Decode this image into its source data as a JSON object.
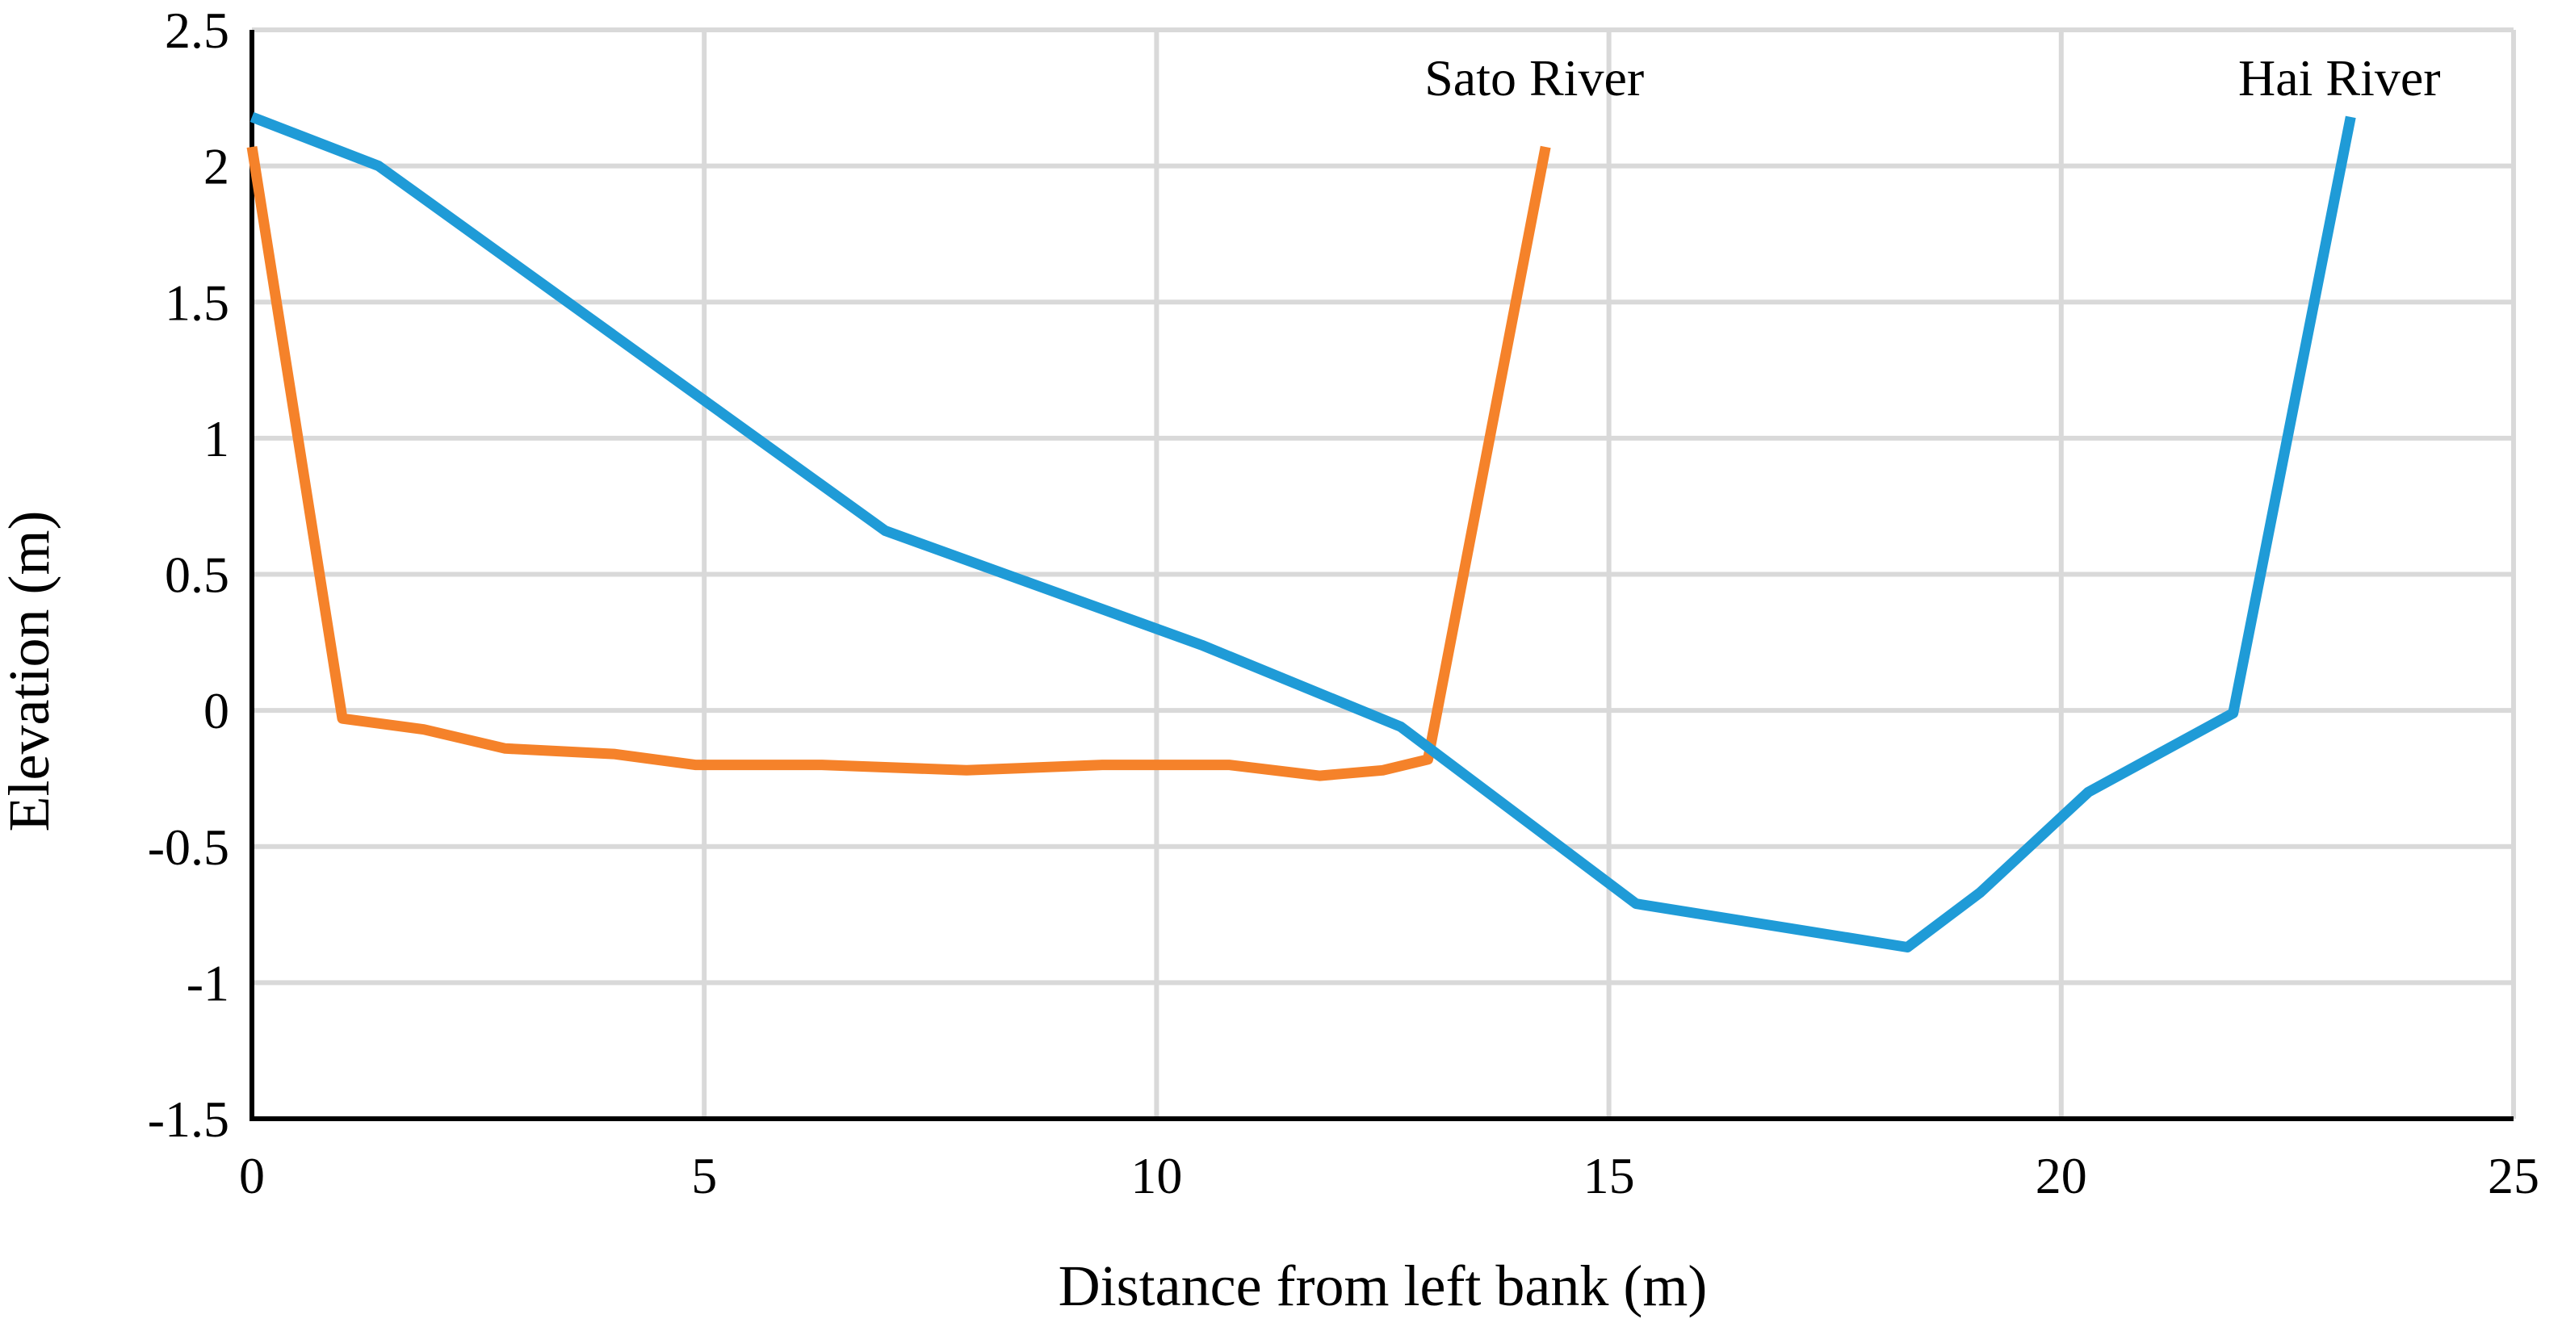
{
  "chart_data": {
    "type": "line",
    "title": "",
    "xlabel": "Distance from left bank (m)",
    "ylabel": "Elevation (m)",
    "xlim": [
      0,
      25
    ],
    "ylim": [
      -1.5,
      2.5
    ],
    "xticks": [
      0,
      5,
      10,
      15,
      20,
      25
    ],
    "yticks": [
      -1.5,
      -1,
      -0.5,
      0,
      0.5,
      1,
      1.5,
      2,
      2.5
    ],
    "xtick_labels": [
      "0",
      "5",
      "10",
      "15",
      "20",
      "25"
    ],
    "ytick_labels": [
      "-1.5",
      "-1",
      "-0.5",
      "0",
      "0.5",
      "1",
      "1.5",
      "2",
      "2.5"
    ],
    "grid": true,
    "legend": "none",
    "series": [
      {
        "name": "Sato River",
        "color": "#F5822A",
        "label_anchor_x": 14.3,
        "points": [
          [
            0.0,
            2.07
          ],
          [
            1.0,
            -0.03
          ],
          [
            1.9,
            -0.07
          ],
          [
            2.8,
            -0.14
          ],
          [
            4.0,
            -0.16
          ],
          [
            4.9,
            -0.2
          ],
          [
            6.3,
            -0.2
          ],
          [
            7.9,
            -0.22
          ],
          [
            9.4,
            -0.2
          ],
          [
            10.8,
            -0.2
          ],
          [
            11.8,
            -0.24
          ],
          [
            12.5,
            -0.22
          ],
          [
            13.0,
            -0.18
          ],
          [
            14.3,
            2.07
          ]
        ]
      },
      {
        "name": "Hai River",
        "color": "#1F9BD7",
        "label_anchor_x": 23.2,
        "points": [
          [
            0.0,
            2.18
          ],
          [
            1.4,
            2.0
          ],
          [
            7.0,
            0.66
          ],
          [
            10.5,
            0.24
          ],
          [
            12.7,
            -0.06
          ],
          [
            15.3,
            -0.71
          ],
          [
            18.3,
            -0.87
          ],
          [
            19.1,
            -0.67
          ],
          [
            20.3,
            -0.3
          ],
          [
            21.9,
            -0.01
          ],
          [
            23.2,
            2.18
          ]
        ]
      }
    ]
  }
}
